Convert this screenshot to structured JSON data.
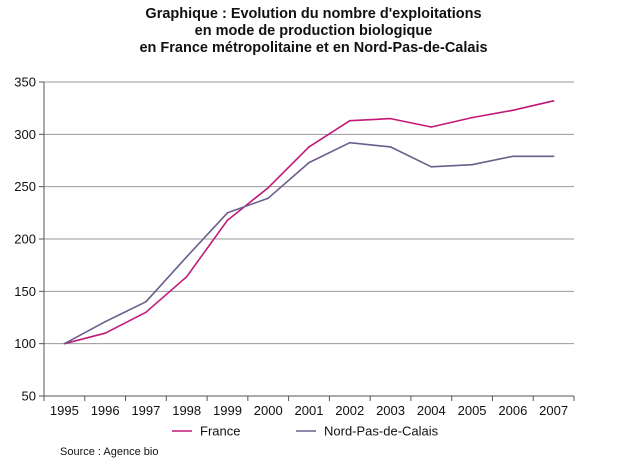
{
  "chart_data": {
    "type": "line",
    "title_lines": [
      "Graphique : Evolution du nombre d'exploitations",
      "en mode de production biologique",
      "en France métropolitaine et en Nord-Pas-de-Calais"
    ],
    "xlabel": "",
    "ylabel": "",
    "x": [
      "1995",
      "1996",
      "1997",
      "1998",
      "1999",
      "2000",
      "2001",
      "2002",
      "2003",
      "2004",
      "2005",
      "2006",
      "2007"
    ],
    "ylim": [
      50,
      350
    ],
    "yticks": [
      50,
      100,
      150,
      200,
      250,
      300,
      350
    ],
    "grid": "horizontal",
    "legend_position": "bottom",
    "series": [
      {
        "name": "France",
        "color": "#c2187a",
        "values": [
          100,
          110,
          130,
          164,
          218,
          249,
          288,
          313,
          315,
          307,
          316,
          323,
          332
        ]
      },
      {
        "name": "Nord-Pas-de-Calais",
        "color": "#6b5e8c",
        "values": [
          100,
          121,
          140,
          183,
          225,
          239,
          273,
          292,
          288,
          269,
          271,
          279,
          279
        ]
      }
    ],
    "source": "Source : Agence bio"
  }
}
